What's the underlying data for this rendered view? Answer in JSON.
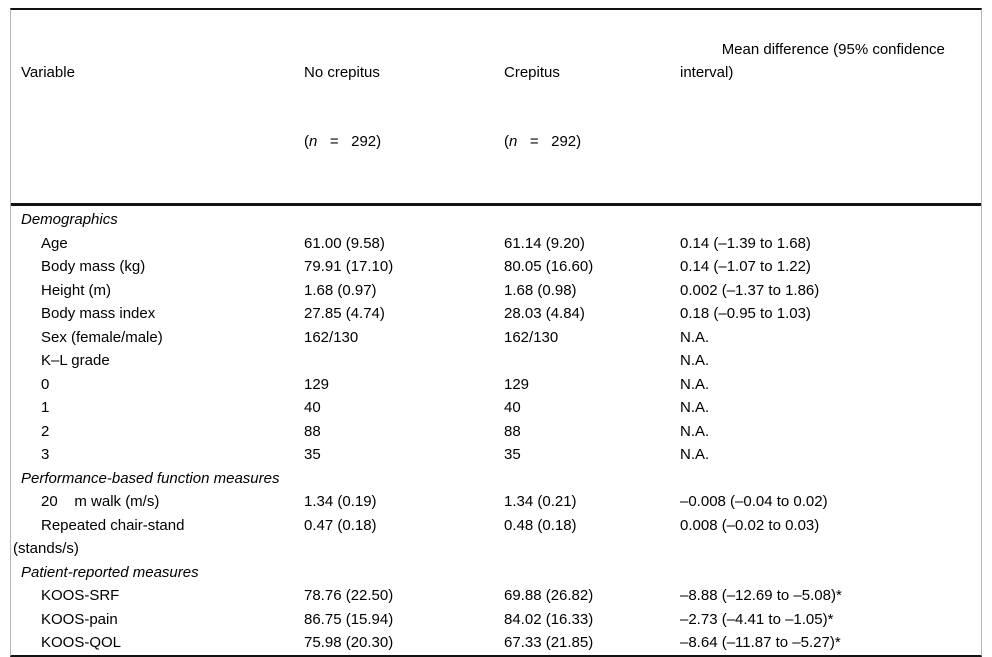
{
  "figure": {
    "type": "table",
    "columns": [
      {
        "id": "variable",
        "line1": "Variable",
        "line2": ""
      },
      {
        "id": "no-crepitus",
        "line1": "No crepitus",
        "n_open": "(",
        "n_italic": "n",
        "n_rest": "   =   292)"
      },
      {
        "id": "crepitus",
        "line1": "Crepitus",
        "n_open": "(",
        "n_italic": "n",
        "n_rest": "   =   292)"
      },
      {
        "id": "mean-difference",
        "line1": "Mean difference (95% confidence\ninterval)",
        "line2": ""
      }
    ],
    "rows": [
      {
        "type": "section",
        "c1": "Demographics",
        "c2": "",
        "c3": "",
        "c4": ""
      },
      {
        "type": "item",
        "c1": "Age",
        "c2": "61.00 (9.58)",
        "c3": "61.14 (9.20)",
        "c4": "0.14 (–1.39 to 1.68)"
      },
      {
        "type": "item",
        "c1": "Body mass (kg)",
        "c2": "79.91 (17.10)",
        "c3": "80.05 (16.60)",
        "c4": "0.14 (–1.07 to 1.22)"
      },
      {
        "type": "item",
        "c1": "Height (m)",
        "c2": "1.68 (0.97)",
        "c3": "1.68 (0.98)",
        "c4": "0.002 (–1.37 to 1.86)"
      },
      {
        "type": "item",
        "c1": "Body mass index",
        "c2": "27.85 (4.74)",
        "c3": "28.03 (4.84)",
        "c4": "0.18 (–0.95 to 1.03)"
      },
      {
        "type": "item",
        "c1": "Sex (female/male)",
        "c2": "162/130",
        "c3": "162/130",
        "c4": "N.A."
      },
      {
        "type": "item",
        "c1": "K–L grade",
        "c2": "",
        "c3": "",
        "c4": "N.A."
      },
      {
        "type": "item",
        "c1": "0",
        "c2": "129",
        "c3": "129",
        "c4": "N.A."
      },
      {
        "type": "item",
        "c1": "1",
        "c2": "40",
        "c3": "40",
        "c4": "N.A."
      },
      {
        "type": "item",
        "c1": "2",
        "c2": "88",
        "c3": "88",
        "c4": "N.A."
      },
      {
        "type": "item",
        "c1": "3",
        "c2": "35",
        "c3": "35",
        "c4": "N.A."
      },
      {
        "type": "section",
        "c1": "Performance-based function measures",
        "c2": "",
        "c3": "",
        "c4": ""
      },
      {
        "type": "item",
        "c1": "20    m walk (m/s)",
        "c2": "1.34 (0.19)",
        "c3": "1.34 (0.21)",
        "c4": "–0.008 (–0.04 to 0.02)"
      },
      {
        "type": "item-wrap",
        "c1": "Repeated chair-stand\n(stands/s)",
        "c2": "0.47 (0.18)",
        "c3": "0.48 (0.18)",
        "c4": "0.008 (–0.02 to 0.03)"
      },
      {
        "type": "section",
        "c1": "Patient-reported measures",
        "c2": "",
        "c3": "",
        "c4": ""
      },
      {
        "type": "item",
        "c1": "KOOS-SRF",
        "c2": "78.76 (22.50)",
        "c3": "69.88 (26.82)",
        "c4": "–8.88 (–12.69 to –5.08)*"
      },
      {
        "type": "item",
        "c1": "KOOS-pain",
        "c2": "86.75 (15.94)",
        "c3": "84.02 (16.33)",
        "c4": "–2.73 (–4.41 to –1.05)*"
      },
      {
        "type": "item",
        "c1": "KOOS-QOL",
        "c2": "75.98 (20.30)",
        "c3": "67.33 (21.85)",
        "c4": "–8.64 (–11.87 to –5.27)*"
      }
    ],
    "colors": {
      "text": "#000000",
      "rule": "#121212",
      "side_rule": "#b4b4b4",
      "background": "#ffffff"
    }
  }
}
